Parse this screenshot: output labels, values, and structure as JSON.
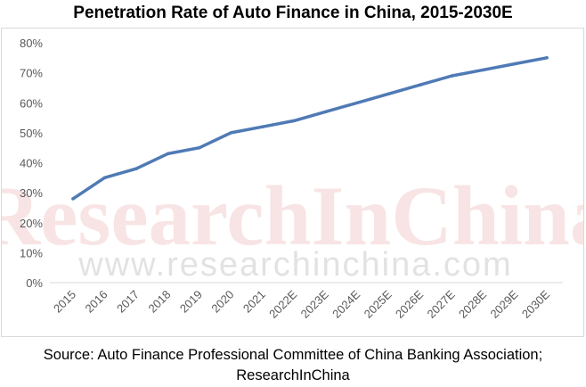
{
  "chart_data": {
    "type": "line",
    "title": "Penetration Rate of Auto Finance in China, 2015-2030E",
    "categories": [
      "2015",
      "2016",
      "2017",
      "2018",
      "2019",
      "2020",
      "2021",
      "2022E",
      "2023E",
      "2024E",
      "2025E",
      "2026E",
      "2027E",
      "2028E",
      "2029E",
      "2030E"
    ],
    "series": [
      {
        "values": [
          28,
          35,
          38,
          43,
          45,
          50,
          52,
          54,
          57,
          60,
          63,
          66,
          69,
          71,
          73,
          75
        ]
      }
    ],
    "ylim": [
      0,
      80
    ],
    "yticks": [
      "0%",
      "10%",
      "20%",
      "30%",
      "40%",
      "50%",
      "60%",
      "70%",
      "80%"
    ],
    "line_color": "#4f7ab5",
    "grid": false,
    "xlabel": "",
    "ylabel": ""
  },
  "watermark": {
    "brand": "ResearchInChina",
    "url": "www.researchinchina.com"
  },
  "source": {
    "line1": "Source: Auto Finance Professional Committee of China Banking Association;",
    "line2": "ResearchInChina"
  }
}
